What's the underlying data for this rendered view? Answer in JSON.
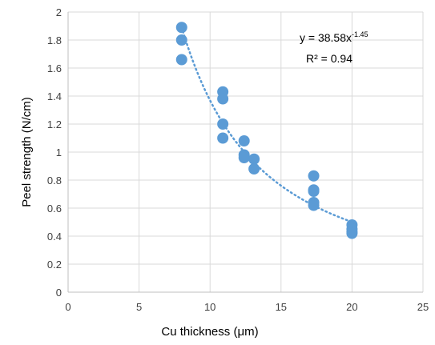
{
  "chart_data": {
    "type": "scatter",
    "title": "",
    "xlabel": "Cu thickness (μm)",
    "ylabel": "Peel strength (N/cm)",
    "xlim": [
      0,
      25
    ],
    "ylim": [
      0,
      2
    ],
    "xticks": [
      "0",
      "5",
      "10",
      "15",
      "20",
      "25"
    ],
    "yticks": [
      "0",
      "0.2",
      "0.4",
      "0.6",
      "0.8",
      "1",
      "1.2",
      "1.4",
      "1.6",
      "1.8",
      "2"
    ],
    "grid": true,
    "legend": "none",
    "series": [
      {
        "color": "#5b9bd5",
        "points": [
          [
            8.0,
            1.89
          ],
          [
            8.0,
            1.8
          ],
          [
            8.0,
            1.66
          ],
          [
            10.9,
            1.43
          ],
          [
            10.9,
            1.38
          ],
          [
            10.9,
            1.2
          ],
          [
            10.9,
            1.1
          ],
          [
            12.4,
            1.08
          ],
          [
            12.4,
            0.98
          ],
          [
            12.4,
            0.96
          ],
          [
            13.1,
            0.95
          ],
          [
            13.1,
            0.88
          ],
          [
            17.3,
            0.83
          ],
          [
            17.3,
            0.73
          ],
          [
            17.3,
            0.72
          ],
          [
            17.3,
            0.64
          ],
          [
            17.3,
            0.62
          ],
          [
            20.0,
            0.48
          ],
          [
            20.0,
            0.45
          ],
          [
            20.0,
            0.43
          ],
          [
            20.0,
            0.42
          ]
        ]
      }
    ],
    "trendline": {
      "type": "power",
      "a": 38.58,
      "b": -1.45,
      "style": "dotted",
      "color": "#5b9bd5",
      "equation_prefix": "y = 38.58x",
      "equation_exponent": "-1.45",
      "r2_label": "R² = 0.94"
    }
  }
}
